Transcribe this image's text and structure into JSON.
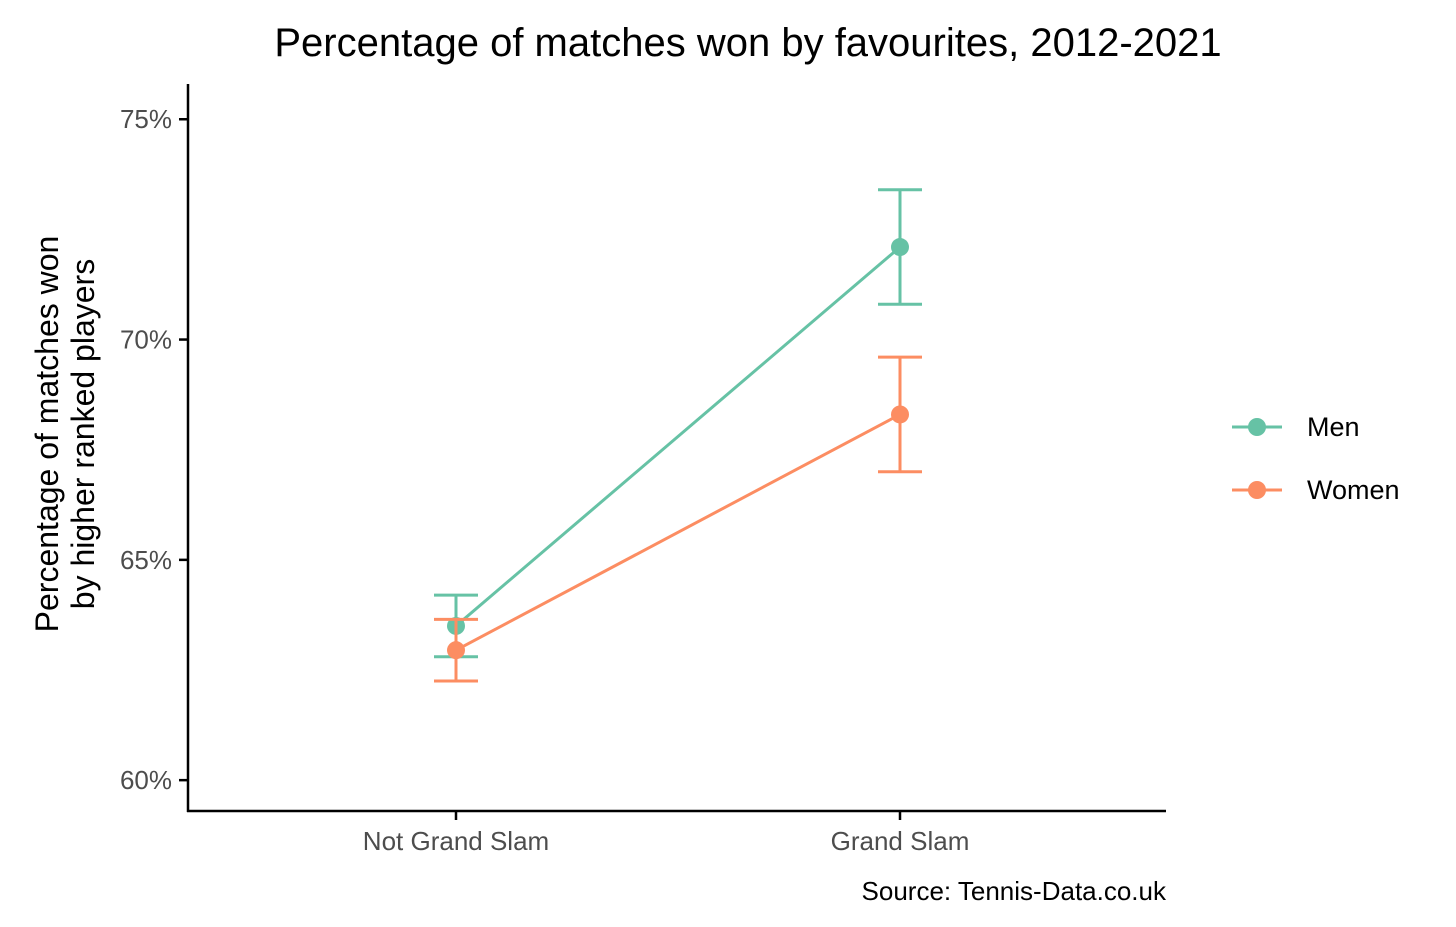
{
  "chart_data": {
    "type": "line",
    "title": "Percentage of matches won by favourites, 2012-2021",
    "ylabel": [
      "Percentage of matches won",
      "by higher ranked players"
    ],
    "xlabel": "",
    "caption": "Source: Tennis-Data.co.uk",
    "categories": [
      "Not Grand Slam",
      "Grand Slam"
    ],
    "ylim": [
      59.3,
      75.8
    ],
    "yticks": [
      60,
      65,
      70,
      75
    ],
    "ytick_labels": [
      "60%",
      "65%",
      "70%",
      "75%"
    ],
    "grid": false,
    "legend_position": "right",
    "series": [
      {
        "name": "Men",
        "color": "#66c2a5",
        "values": [
          63.5,
          72.1
        ],
        "lower": [
          62.8,
          70.8
        ],
        "upper": [
          64.2,
          73.4
        ]
      },
      {
        "name": "Women",
        "color": "#fc8d62",
        "values": [
          62.95,
          68.3
        ],
        "lower": [
          62.25,
          67.0
        ],
        "upper": [
          63.65,
          69.6
        ]
      }
    ]
  }
}
